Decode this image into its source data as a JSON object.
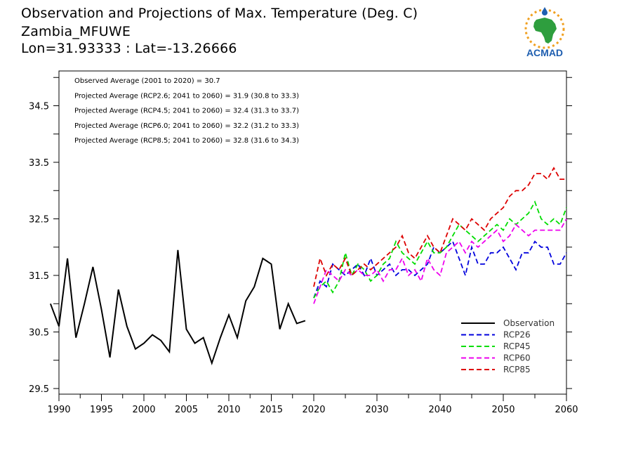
{
  "header": {
    "title": "Observation and Projections of Max. Temperature (Deg. C)",
    "station": "Zambia_MFUWE",
    "coords": "Lon=31.93333 : Lat=-13.26666",
    "logo_text": "ACMAD"
  },
  "annotations": [
    "Observed Average (2001 to 2020) = 30.7",
    "Projected Average (RCP2.6; 2041 to 2060) = 31.9 (30.8 to 33.3)",
    "Projected Average (RCP4.5; 2041 to 2060) = 32.4 (31.3 to 33.7)",
    "Projected Average (RCP6.0; 2041 to 2060) = 32.2 (31.2 to 33.3)",
    "Projected Average (RCP8.5; 2041 to 2060) = 32.8 (31.6 to 34.3)"
  ],
  "colors": {
    "observation": "#000000",
    "rcp26": "#0000dd",
    "rcp45": "#00dd00",
    "rcp60": "#ee00ee",
    "rcp85": "#dd0000",
    "logo_green": "#2e9e3e",
    "logo_blue": "#1f5fb0",
    "logo_orange": "#f0a020"
  },
  "chart_data": {
    "type": "line",
    "xlim": [
      1990,
      2060
    ],
    "ylim": [
      29.5,
      35.2
    ],
    "x_ticks": [
      "1990",
      "1995",
      "2000",
      "2005",
      "2010",
      "2015",
      "2020",
      "2030",
      "2040",
      "2050",
      "2060"
    ],
    "y_ticks": [
      "29.5",
      "30.5",
      "31.5",
      "32.5",
      "33.5",
      "34.5"
    ],
    "legend_position": "bottom-right",
    "series": [
      {
        "name": "Observation",
        "style": "solid",
        "x": [
          1989,
          1990,
          1991,
          1992,
          1993,
          1994,
          1995,
          1996,
          1997,
          1998,
          1999,
          2000,
          2001,
          2002,
          2003,
          2004,
          2005,
          2006,
          2007,
          2008,
          2009,
          2010,
          2011,
          2012,
          2013,
          2014,
          2015,
          2016,
          2017,
          2018,
          2019
        ],
        "y": [
          31.0,
          30.6,
          31.8,
          30.4,
          31.0,
          31.65,
          30.9,
          30.05,
          31.25,
          30.6,
          30.2,
          30.3,
          30.45,
          30.35,
          30.15,
          31.95,
          30.55,
          30.3,
          30.4,
          29.95,
          30.4,
          30.8,
          30.4,
          31.05,
          31.3,
          31.8,
          31.7,
          30.55,
          31.0,
          30.65,
          30.7
        ]
      },
      {
        "name": "RCP26",
        "style": "dashed",
        "x": [
          2020,
          2021,
          2022,
          2023,
          2024,
          2025,
          2026,
          2027,
          2028,
          2029,
          2030,
          2031,
          2032,
          2033,
          2034,
          2035,
          2036,
          2037,
          2038,
          2039,
          2040,
          2041,
          2042,
          2043,
          2044,
          2045,
          2046,
          2047,
          2048,
          2049,
          2050,
          2051,
          2052,
          2053,
          2054,
          2055,
          2056,
          2057,
          2058,
          2059,
          2060
        ],
        "y": [
          31.1,
          31.4,
          31.3,
          31.7,
          31.6,
          31.5,
          31.6,
          31.7,
          31.5,
          31.8,
          31.5,
          31.6,
          31.7,
          31.5,
          31.6,
          31.6,
          31.5,
          31.6,
          31.7,
          32.0,
          31.9,
          32.0,
          32.1,
          31.8,
          31.5,
          32.0,
          31.7,
          31.7,
          31.9,
          31.9,
          32.0,
          31.8,
          31.6,
          31.9,
          31.9,
          32.1,
          32.0,
          32.0,
          31.7,
          31.7,
          31.9
        ]
      },
      {
        "name": "RCP45",
        "style": "dashed",
        "x": [
          2020,
          2021,
          2022,
          2023,
          2024,
          2025,
          2026,
          2027,
          2028,
          2029,
          2030,
          2031,
          2032,
          2033,
          2034,
          2035,
          2036,
          2037,
          2038,
          2039,
          2040,
          2041,
          2042,
          2043,
          2044,
          2045,
          2046,
          2047,
          2048,
          2049,
          2050,
          2051,
          2052,
          2053,
          2054,
          2055,
          2056,
          2057,
          2058,
          2059,
          2060
        ],
        "y": [
          31.1,
          31.3,
          31.4,
          31.2,
          31.4,
          31.9,
          31.5,
          31.7,
          31.6,
          31.4,
          31.5,
          31.7,
          31.8,
          32.1,
          31.9,
          31.8,
          31.7,
          31.9,
          32.1,
          31.9,
          31.9,
          32.0,
          32.2,
          32.4,
          32.3,
          32.2,
          32.1,
          32.2,
          32.3,
          32.4,
          32.3,
          32.5,
          32.4,
          32.5,
          32.6,
          32.8,
          32.5,
          32.4,
          32.5,
          32.4,
          32.7
        ]
      },
      {
        "name": "RCP60",
        "style": "dashed",
        "x": [
          2020,
          2021,
          2022,
          2023,
          2024,
          2025,
          2026,
          2027,
          2028,
          2029,
          2030,
          2031,
          2032,
          2033,
          2034,
          2035,
          2036,
          2037,
          2038,
          2039,
          2040,
          2041,
          2042,
          2043,
          2044,
          2045,
          2046,
          2047,
          2048,
          2049,
          2050,
          2051,
          2052,
          2053,
          2054,
          2055,
          2056,
          2057,
          2058,
          2059,
          2060
        ],
        "y": [
          31.0,
          31.3,
          31.6,
          31.5,
          31.4,
          31.6,
          31.5,
          31.6,
          31.5,
          31.5,
          31.6,
          31.4,
          31.6,
          31.6,
          31.8,
          31.5,
          31.6,
          31.4,
          31.8,
          31.6,
          31.5,
          31.9,
          32.0,
          32.1,
          31.9,
          32.1,
          32.0,
          32.1,
          32.2,
          32.3,
          32.1,
          32.2,
          32.4,
          32.3,
          32.2,
          32.3,
          32.3,
          32.3,
          32.3,
          32.3,
          32.5
        ]
      },
      {
        "name": "RCP85",
        "style": "dashed",
        "x": [
          2020,
          2021,
          2022,
          2023,
          2024,
          2025,
          2026,
          2027,
          2028,
          2029,
          2030,
          2031,
          2032,
          2033,
          2034,
          2035,
          2036,
          2037,
          2038,
          2039,
          2040,
          2041,
          2042,
          2043,
          2044,
          2045,
          2046,
          2047,
          2048,
          2049,
          2050,
          2051,
          2052,
          2053,
          2054,
          2055,
          2056,
          2057,
          2058,
          2059,
          2060
        ],
        "y": [
          31.3,
          31.8,
          31.5,
          31.7,
          31.6,
          31.8,
          31.5,
          31.6,
          31.7,
          31.6,
          31.7,
          31.8,
          31.9,
          32.0,
          32.2,
          31.9,
          31.8,
          32.0,
          32.2,
          32.0,
          31.9,
          32.2,
          32.5,
          32.4,
          32.3,
          32.5,
          32.4,
          32.3,
          32.5,
          32.6,
          32.7,
          32.9,
          33.0,
          33.0,
          33.1,
          33.3,
          33.3,
          33.2,
          33.4,
          33.2,
          33.2
        ]
      }
    ]
  }
}
